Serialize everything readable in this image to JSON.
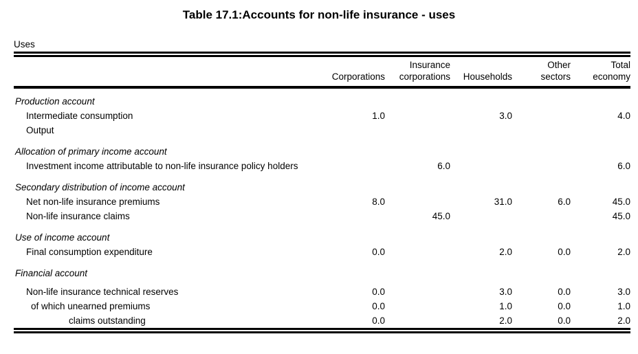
{
  "title": "Table 17.1:Accounts for non-life insurance - uses",
  "colors": {
    "text": "#000000",
    "background": "#ffffff"
  },
  "table": {
    "corner_label": "Uses",
    "columns": [
      {
        "key": "corporations",
        "lines": [
          "",
          "Corporations"
        ]
      },
      {
        "key": "insurance-corporations",
        "lines": [
          "Insurance",
          "corporations"
        ]
      },
      {
        "key": "households",
        "lines": [
          "",
          "Households"
        ]
      },
      {
        "key": "other-sectors",
        "lines": [
          "Other",
          "sectors"
        ]
      },
      {
        "key": "total-economy",
        "lines": [
          "Total",
          "economy"
        ]
      }
    ],
    "sections": [
      {
        "heading": "Production account",
        "rows": [
          {
            "label": "Intermediate consumption",
            "indent": 1,
            "values": [
              "1.0",
              "",
              "3.0",
              "",
              "4.0"
            ]
          },
          {
            "label": "Output",
            "indent": 1,
            "values": [
              "",
              "",
              "",
              "",
              ""
            ]
          }
        ]
      },
      {
        "heading": "Allocation of primary income account",
        "rows": [
          {
            "label": "Investment income attributable to non-life insurance policy holders",
            "indent": 1,
            "values": [
              "",
              "6.0",
              "",
              "",
              "6.0"
            ]
          }
        ]
      },
      {
        "heading": "Secondary distribution of income account",
        "rows": [
          {
            "label": "Net non-life insurance premiums",
            "indent": 1,
            "values": [
              "8.0",
              "",
              "31.0",
              "6.0",
              "45.0"
            ]
          },
          {
            "label": "Non-life insurance claims",
            "indent": 1,
            "values": [
              "",
              "45.0",
              "",
              "",
              "45.0"
            ]
          }
        ]
      },
      {
        "heading": "Use of income account",
        "rows": [
          {
            "label": "Final consumption expenditure",
            "indent": 1,
            "values": [
              "0.0",
              "",
              "2.0",
              "0.0",
              "2.0"
            ]
          }
        ]
      },
      {
        "heading": "Financial account",
        "rows": [
          {
            "label": "Non-life insurance technical reserves",
            "indent": 1,
            "values": [
              "0.0",
              "",
              "3.0",
              "0.0",
              "3.0"
            ]
          },
          {
            "label": "of which unearned premiums",
            "indent": 2,
            "values": [
              "0.0",
              "",
              "1.0",
              "0.0",
              "1.0"
            ]
          },
          {
            "label": "claims outstanding",
            "indent": 3,
            "values": [
              "0.0",
              "",
              "2.0",
              "0.0",
              "2.0"
            ]
          }
        ]
      }
    ]
  }
}
